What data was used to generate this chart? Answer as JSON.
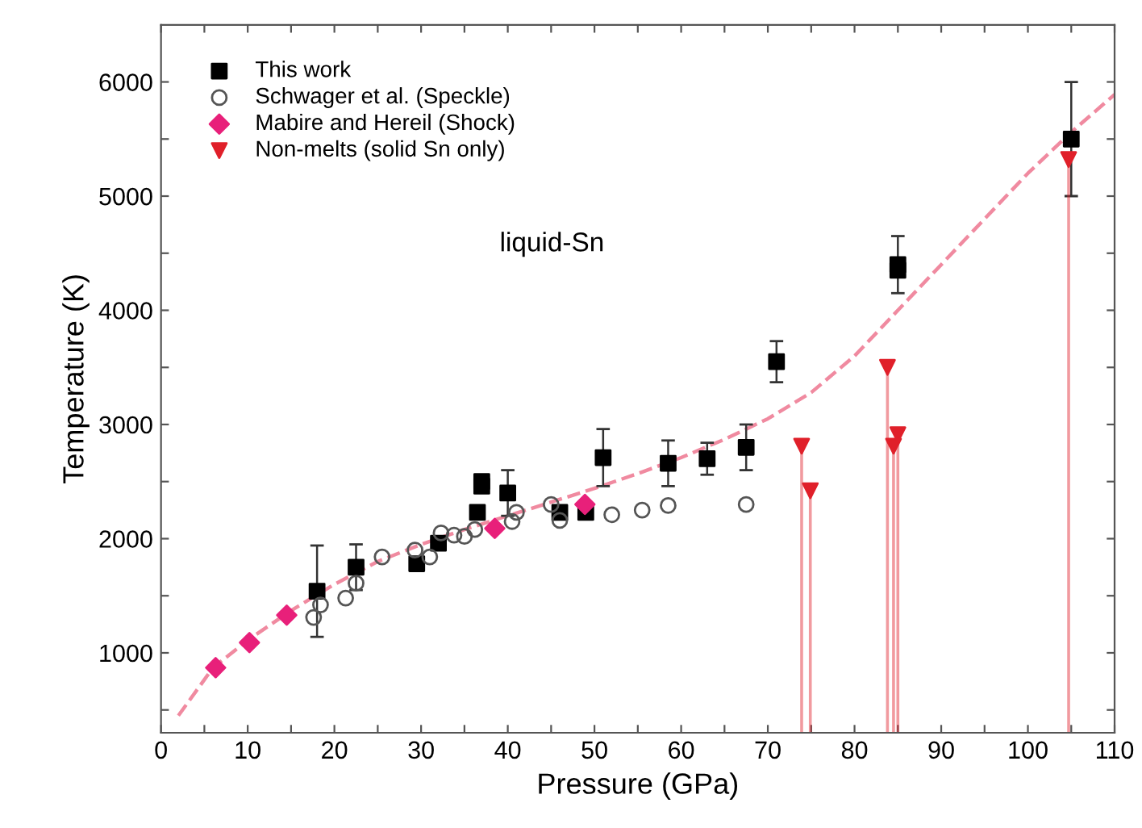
{
  "chart_data": {
    "type": "scatter",
    "xlabel": "Pressure (GPa)",
    "ylabel": "Temperature (K)",
    "xlim": [
      0,
      110
    ],
    "ylim": [
      300,
      6500
    ],
    "xticks": [
      0,
      {
        "value": 5,
        "label": null
      },
      10,
      {
        "value": 15,
        "label": null
      },
      20,
      {
        "value": 25,
        "label": null
      },
      30,
      {
        "value": 35,
        "label": null
      },
      40,
      {
        "value": 45,
        "label": null
      },
      50,
      {
        "value": 55,
        "label": null
      },
      60,
      {
        "value": 65,
        "label": null
      },
      70,
      {
        "value": 75,
        "label": null
      },
      80,
      {
        "value": 85,
        "label": null
      },
      90,
      {
        "value": 95,
        "label": null
      },
      100,
      {
        "value": 105,
        "label": null
      },
      110
    ],
    "yticks": [
      {
        "value": 500,
        "label": null
      },
      1000,
      {
        "value": 1500,
        "label": null
      },
      2000,
      {
        "value": 2500,
        "label": null
      },
      3000,
      {
        "value": 3500,
        "label": null
      },
      4000,
      {
        "value": 4500,
        "label": null
      },
      5000,
      {
        "value": 5500,
        "label": null
      },
      6000
    ],
    "legend": "top left",
    "grid": false,
    "annotations": [
      "liquid-Sn"
    ],
    "series": [
      {
        "type": "line",
        "color": "#f08aa0",
        "line_style": "dashed",
        "marker": "none",
        "x": [
          2,
          6,
          10,
          15,
          20,
          25,
          30,
          35,
          40,
          45,
          50,
          55,
          60,
          65,
          70,
          75,
          80,
          85,
          90,
          95,
          100,
          105,
          110
        ],
        "values": [
          450,
          870,
          1110,
          1370,
          1600,
          1800,
          1950,
          2080,
          2200,
          2320,
          2440,
          2570,
          2710,
          2870,
          3050,
          3280,
          3600,
          4000,
          4400,
          4800,
          5200,
          5560,
          5890
        ]
      },
      {
        "name": "This work",
        "color": "#000000",
        "marker": "square",
        "x": [
          18,
          22.5,
          29.5,
          32,
          36.5,
          37,
          37,
          40,
          46,
          49,
          51,
          58.5,
          63,
          67.5,
          71,
          85,
          85,
          105
        ],
        "values": [
          1540,
          1750,
          1780,
          1960,
          2230,
          2460,
          2500,
          2400,
          2230,
          2230,
          2710,
          2660,
          2700,
          2800,
          3550,
          4350,
          4400,
          5500
        ],
        "errors": [
          400,
          200,
          null,
          null,
          null,
          null,
          null,
          200,
          null,
          null,
          250,
          200,
          140,
          200,
          180,
          null,
          250,
          500
        ]
      },
      {
        "name": "Schwager et al. (Speckle)",
        "color": "#555555",
        "marker": "circle",
        "x": [
          17.6,
          18.4,
          21.3,
          22.5,
          25.5,
          29.3,
          31,
          32.3,
          33.8,
          35,
          36.2,
          40.5,
          41,
          45,
          46,
          52,
          55.5,
          58.5,
          67.5
        ],
        "values": [
          1310,
          1420,
          1480,
          1610,
          1840,
          1900,
          1840,
          2050,
          2030,
          2020,
          2080,
          2150,
          2230,
          2300,
          2160,
          2210,
          2250,
          2290,
          2300
        ]
      },
      {
        "name": "Mabire and Hereil (Shock)",
        "color": "#e8207a",
        "marker": "diamond",
        "x": [
          6.3,
          10.2,
          14.5,
          38.5,
          48.9
        ],
        "values": [
          870,
          1090,
          1330,
          2090,
          2300
        ]
      },
      {
        "name": "Non-melts (solid Sn only)",
        "color": "#e0202a",
        "marker": "triangle",
        "x": [
          73.9,
          74.9,
          83.8,
          84.5,
          85,
          104.7
        ],
        "values": [
          2810,
          2420,
          3500,
          2810,
          2910,
          5320
        ],
        "errors": [
          [
            300,
            2810
          ],
          [
            300,
            2420
          ],
          [
            300,
            3500
          ],
          [
            300,
            2810
          ],
          [
            300,
            2910
          ],
          [
            300,
            5320
          ]
        ]
      }
    ]
  }
}
